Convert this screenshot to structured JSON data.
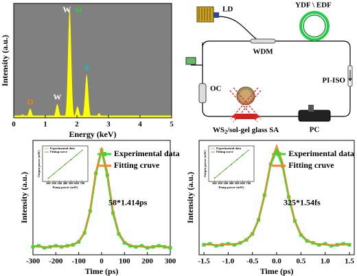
{
  "chart_data": [
    {
      "type": "spectrum",
      "x_label": "Energy (keV)",
      "y_label": "Intensity (a.u.)",
      "xlim": [
        0,
        5
      ],
      "xticks": [
        0,
        1,
        2,
        3,
        4,
        5
      ],
      "ylim": [
        0,
        100
      ],
      "background": "#808080",
      "color": "#ffff00",
      "peaks": {
        "x": [
          0.28,
          0.52,
          1.38,
          1.77,
          2.02,
          2.31,
          2.7
        ],
        "values": [
          3,
          8,
          12,
          96,
          10,
          38,
          4
        ]
      },
      "annotations": [
        {
          "text": "O",
          "x": 0.52,
          "color": "#ff8000"
        },
        {
          "text": "W",
          "x": 1.38,
          "color": "#ffffff"
        },
        {
          "text": "W",
          "x": 1.77,
          "color": "#ffffff"
        },
        {
          "text": "Si",
          "x": 1.77,
          "color": "#33cc33"
        },
        {
          "text": "S",
          "x": 2.31,
          "color": "#00cccc"
        }
      ]
    },
    {
      "type": "line",
      "x_label": "Time (ps)",
      "y_label": "Intensity (a.u.)",
      "xlim": [
        -300,
        300
      ],
      "xticks": [
        -300,
        -200,
        -100,
        0,
        100,
        200,
        300
      ],
      "ylim": [
        -0.05,
        1.1
      ],
      "x": [
        -300,
        -275,
        -250,
        -225,
        -200,
        -175,
        -150,
        -125,
        -100,
        -75,
        -50,
        -25,
        0,
        25,
        50,
        75,
        100,
        125,
        150,
        175,
        200,
        225,
        250,
        275,
        300
      ],
      "series": [
        {
          "name": "Experimental data",
          "color": "#33dd33",
          "marker": "square",
          "values": [
            0.03,
            0.04,
            0.02,
            0.03,
            0.04,
            0.03,
            0.04,
            0.05,
            0.08,
            0.17,
            0.39,
            0.77,
            1.0,
            0.75,
            0.37,
            0.16,
            0.07,
            0.04,
            0.03,
            0.04,
            0.02,
            0.03,
            0.04,
            0.03,
            0.02
          ]
        },
        {
          "name": "Fitting cruve",
          "color": "#ff7f27",
          "values": [
            0.03,
            0.03,
            0.03,
            0.03,
            0.031,
            0.032,
            0.036,
            0.048,
            0.083,
            0.178,
            0.403,
            0.789,
            1.03,
            0.789,
            0.403,
            0.178,
            0.083,
            0.048,
            0.036,
            0.032,
            0.031,
            0.03,
            0.03,
            0.03,
            0.03
          ]
        }
      ],
      "annotation": "58*1.414ps",
      "inset": {
        "x_label": "Pump power (mW)",
        "y_label": "Output power (mW)",
        "xlim": [
          0,
          800
        ],
        "xticks": [
          100,
          200,
          300,
          400,
          500,
          600,
          700
        ],
        "ylim": [
          0,
          160
        ],
        "x": [
          100,
          200,
          300,
          400,
          500,
          600,
          700
        ],
        "series": [
          {
            "name": "Experimental data",
            "color": "#ff7f27",
            "values": [
              15,
              35,
              56,
              77,
              98,
              119,
              140
            ]
          },
          {
            "name": "Fitting curve",
            "color": "#22aa22",
            "values": [
              14,
              35,
              56,
              77,
              98,
              119,
              140
            ]
          }
        ]
      }
    },
    {
      "type": "line",
      "x_label": "Time (ps)",
      "y_label": "Intensity (a.u.)",
      "xlim": [
        -1.6,
        1.6
      ],
      "xticks": [
        -1.5,
        {
          "value": -1,
          "label": "-1.0"
        },
        -0.5,
        {
          "value": 0,
          "label": "0.0"
        },
        0.5,
        {
          "value": 1,
          "label": "1.0"
        },
        1.5
      ],
      "ylim": [
        -0.05,
        1.1
      ],
      "x": [
        -1.5,
        -1.375,
        -1.25,
        -1.125,
        -1,
        -0.875,
        -0.75,
        -0.625,
        -0.5,
        -0.375,
        -0.25,
        -0.125,
        0,
        0.125,
        0.25,
        0.375,
        0.5,
        0.625,
        0.75,
        0.875,
        1,
        1.125,
        1.25,
        1.375,
        1.5
      ],
      "series": [
        {
          "name": "Experimental data",
          "color": "#33dd33",
          "marker": "square",
          "values": [
            0.05,
            0.06,
            0.04,
            0.05,
            0.06,
            0.05,
            0.07,
            0.1,
            0.16,
            0.3,
            0.55,
            0.86,
            1.0,
            0.84,
            0.53,
            0.29,
            0.15,
            0.09,
            0.07,
            0.05,
            0.06,
            0.04,
            0.05,
            0.06,
            0.05
          ]
        },
        {
          "name": "Fitting cruve",
          "color": "#ff7f27",
          "values": [
            0.05,
            0.05,
            0.05,
            0.05,
            0.054,
            0.058,
            0.07,
            0.098,
            0.162,
            0.299,
            0.551,
            0.878,
            1.05,
            0.878,
            0.551,
            0.299,
            0.162,
            0.098,
            0.07,
            0.058,
            0.054,
            0.05,
            0.05,
            0.05,
            0.05
          ]
        }
      ],
      "annotation": "325*1.54fs",
      "inset": {
        "x_label": "Pump power (mW)",
        "y_label": "Output power (mW)",
        "xlim": [
          0,
          800
        ],
        "xticks": [
          100,
          200,
          300,
          400,
          500,
          600,
          700
        ],
        "ylim": [
          0,
          160
        ],
        "x": [
          100,
          200,
          300,
          400,
          500,
          600,
          700
        ],
        "series": [
          {
            "name": "Experimental data",
            "color": "#ff7f27",
            "values": [
              15,
              35,
              56,
              77,
              98,
              119,
              140
            ]
          },
          {
            "name": "Fitting curve",
            "color": "#22aa22",
            "values": [
              14,
              35,
              56,
              77,
              98,
              119,
              140
            ]
          }
        ]
      }
    }
  ],
  "diagram": {
    "ld": "LD",
    "gain_fiber": "YDF \\ EDF",
    "wdm": "WDM",
    "isolator": "PI-ISO",
    "coupler": "OC",
    "controller": "PC",
    "absorber": {
      "main": "WS",
      "sub": "2",
      "rest": "/sol-gel glass SA"
    }
  }
}
